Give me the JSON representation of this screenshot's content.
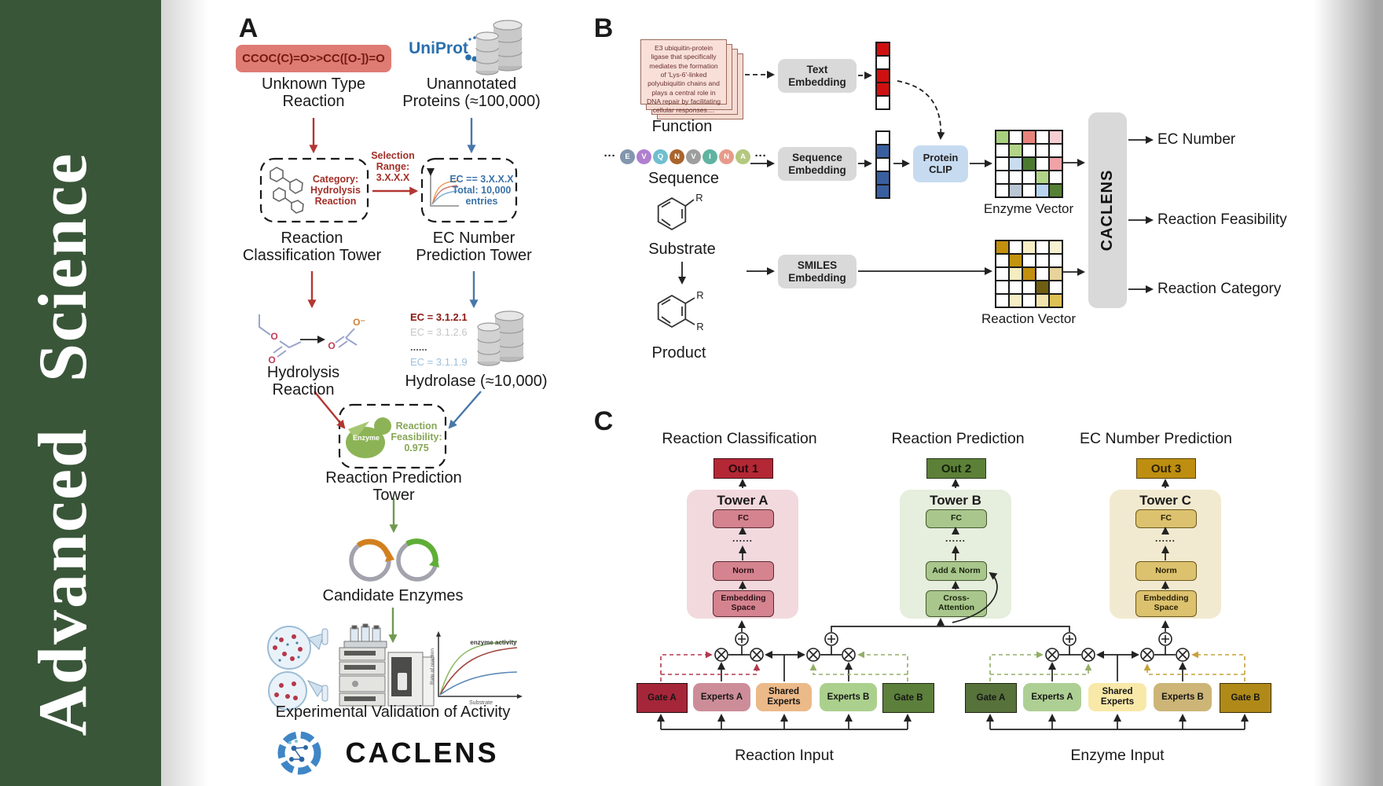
{
  "banner": {
    "journal": "Advanced Science",
    "bg_color": "#3a5639"
  },
  "colors": {
    "red_accent": "#b23732",
    "blue_accent": "#4878aa",
    "green_accent": "#6f9a4f",
    "out1": "#b42735",
    "out2": "#5d8038",
    "out3": "#bd8e10",
    "smiles_box": "#de7b73",
    "protein_clip": "#c7dbf0",
    "embed_gray": "#d9d9d9"
  },
  "panel_a": {
    "label": "A",
    "smiles": "CCOC(C)=O>>CC([O-])=O",
    "unknown_type": "Unknown Type\nReaction",
    "uniprot": "UniProt",
    "unannotated": "Unannotated\nProteins (≈100,000)",
    "category_box": "Category:\nHydrolysis\nReaction",
    "selection": "Selection\nRange:\n3.X.X.X",
    "ec_box": "EC == 3.X.X.X\nTotal: 10,000\nentries",
    "classification_tower": "Reaction\nClassification Tower",
    "ec_tower": "EC Number\nPrediction Tower",
    "hydrolysis": "Hydrolysis Reaction",
    "ec_list": [
      {
        "text": "EC = 3.1.2.1",
        "color": "#8a1a12",
        "bold": true
      },
      {
        "text": "EC = 3.1.2.6",
        "color": "#c6c6c6",
        "bold": false
      },
      {
        "text": "......",
        "color": "#555555",
        "bold": true
      },
      {
        "text": "EC = 3.1.1.9",
        "color": "#9cc0dc",
        "bold": false
      }
    ],
    "hydrolase": "Hydrolase (≈10,000)",
    "enzyme": "Enzyme",
    "feasibility": "Reaction\nFeasibility:\n0.975",
    "prediction_tower": "Reaction Prediction Tower",
    "candidates": "Candidate Enzymes",
    "validation": "Experimental Validation of Activity",
    "logo": "CACLENS",
    "atoms": {
      "o": "O",
      "o_minus": "O⁻"
    },
    "activity_plot": {
      "ylabel": "Rate of reaction",
      "xlabel": "Substrate",
      "annotation": "enzyme activity"
    }
  },
  "panel_b": {
    "label": "B",
    "function_text": "E3 ubiquitin-protein ligase that specifically mediates the formation of 'Lys-6'-linked polyubiquitin chains and plays a central role in DNA repair by facilitating cellular responses....",
    "function_label": "Function",
    "ellipsis": "···",
    "residues": [
      {
        "letter": "E",
        "color": "#8296ad"
      },
      {
        "letter": "V",
        "color": "#b07fd0"
      },
      {
        "letter": "Q",
        "color": "#6fbfd0"
      },
      {
        "letter": "N",
        "color": "#a9642c"
      },
      {
        "letter": "V",
        "color": "#9e9e9e"
      },
      {
        "letter": "I",
        "color": "#5fb3a1"
      },
      {
        "letter": "N",
        "color": "#e89a8a"
      },
      {
        "letter": "A",
        "color": "#b4c87e"
      }
    ],
    "sequence_label": "Sequence",
    "substrate_label": "Substrate",
    "product_label": "Product",
    "r_group": "R",
    "text_embedding": "Text\nEmbedding",
    "sequence_embedding": "Sequence\nEmbedding",
    "smiles_embedding": "SMILES\nEmbedding",
    "protein_clip": "Protein\nCLIP",
    "text_vector": [
      "#d01010",
      "#ffffff",
      "#d01010",
      "#d01010",
      "#ffffff"
    ],
    "sequence_vector": [
      "#ffffff",
      "#3a5fa0",
      "#ffffff",
      "#3a5fa0",
      "#3a5fa0"
    ],
    "enzyme_vector_label": "Enzyme Vector",
    "reaction_vector_label": "Reaction Vector",
    "enzyme_vector": [
      [
        "#a8cf7e",
        "#ffffff",
        "#e8837c",
        "#ffffff",
        "#f6ced2"
      ],
      [
        "#ffffff",
        "#b2d489",
        "#ffffff",
        "#ffffff",
        "#ffffff"
      ],
      [
        "#ffffff",
        "#c9dcf0",
        "#4b7a2f",
        "#ffffff",
        "#efa3a7"
      ],
      [
        "#ffffff",
        "#ffffff",
        "#ffffff",
        "#b2d489",
        "#ffffff"
      ],
      [
        "#ffffff",
        "#b9c6d4",
        "#ffffff",
        "#b9d4f0",
        "#557f35"
      ]
    ],
    "reaction_vector": [
      [
        "#c28f0e",
        "#ffffff",
        "#f7eec6",
        "#ffffff",
        "#f8f0d2"
      ],
      [
        "#ffffff",
        "#c3940f",
        "#ffffff",
        "#ffffff",
        "#ffffff"
      ],
      [
        "#ffffff",
        "#f5ecc0",
        "#c28f0e",
        "#ffffff",
        "#e8d49a"
      ],
      [
        "#ffffff",
        "#ffffff",
        "#ffffff",
        "#6f5e12",
        "#ffffff"
      ],
      [
        "#ffffff",
        "#f5eec6",
        "#ffffff",
        "#f2e4ae",
        "#ddc155"
      ]
    ],
    "caclens": "CACLENS",
    "outputs": [
      "EC Number",
      "Reaction Feasibility",
      "Reaction Category"
    ]
  },
  "panel_c": {
    "label": "C",
    "headers": [
      "Reaction Classification",
      "Reaction Prediction",
      "EC Number Prediction"
    ],
    "outs": [
      "Out 1",
      "Out 2",
      "Out 3"
    ],
    "towers": [
      {
        "title": "Tower A",
        "fc": "FC",
        "dots": "......",
        "norm": "Norm",
        "bottom": "Embedding\nSpace"
      },
      {
        "title": "Tower B",
        "fc": "FC",
        "dots": "......",
        "norm": "Add & Norm",
        "bottom": "Cross-\nAttention"
      },
      {
        "title": "Tower C",
        "fc": "FC",
        "dots": "......",
        "norm": "Norm",
        "bottom": "Embedding\nSpace"
      }
    ],
    "groups": [
      {
        "gate_a": "Gate A",
        "experts_a": "Experts A",
        "shared": "Shared\nExperts",
        "experts_b": "Experts B",
        "gate_b": "Gate B",
        "input": "Reaction Input"
      },
      {
        "gate_a": "Gate A",
        "experts_a": "Experts A",
        "shared": "Shared\nExperts",
        "experts_b": "Experts B",
        "gate_b": "Gate B",
        "input": "Enzyme Input"
      }
    ]
  }
}
